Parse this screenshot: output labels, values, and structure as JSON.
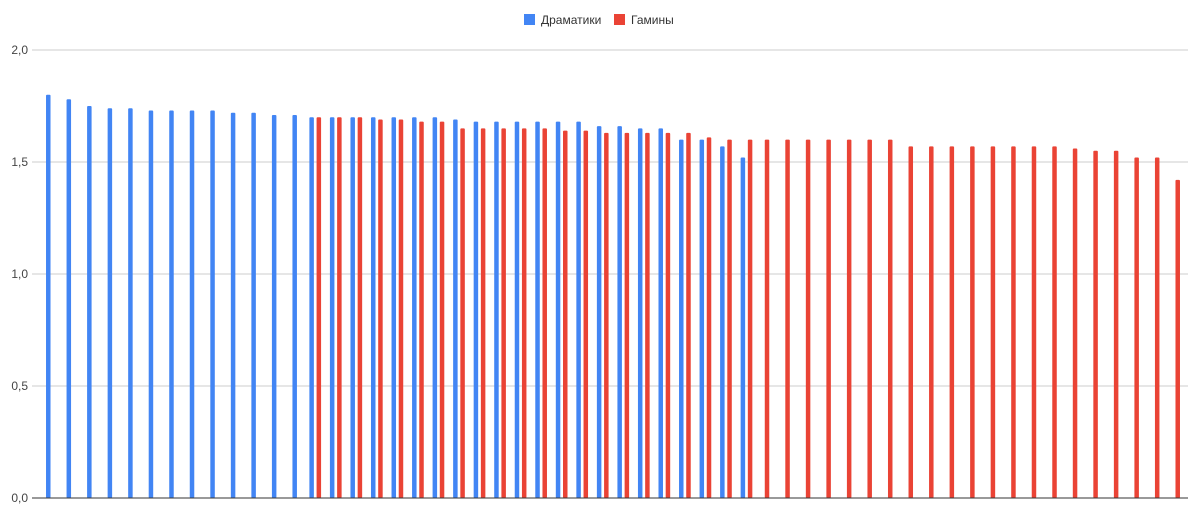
{
  "chart_data": {
    "type": "bar",
    "ylim": [
      0,
      2
    ],
    "y_ticks": [
      "0,0",
      "0,5",
      "1,0",
      "1,5",
      "2,0"
    ],
    "y_tick_values": [
      0,
      0.5,
      1.0,
      1.5,
      2.0
    ],
    "grid": true,
    "legend_position": "top-center",
    "categories": [
      "",
      "",
      "",
      "",
      "",
      "",
      "",
      "",
      "",
      "",
      "",
      "",
      "",
      "",
      "",
      "",
      "",
      "",
      "",
      "",
      "",
      "",
      "",
      "",
      "",
      "",
      "",
      "",
      "",
      "",
      "",
      "",
      "",
      "",
      "",
      "",
      "",
      "",
      "",
      "",
      "",
      "",
      "",
      "",
      "",
      "",
      "",
      "",
      "",
      "",
      "",
      "",
      "",
      "",
      "",
      ""
    ],
    "series": [
      {
        "name": "Драматики",
        "color": "#4285f4",
        "values": [
          1.8,
          1.78,
          1.75,
          1.74,
          1.74,
          1.73,
          1.73,
          1.73,
          1.73,
          1.72,
          1.72,
          1.71,
          1.71,
          1.7,
          1.7,
          1.7,
          1.7,
          1.7,
          1.7,
          1.7,
          1.69,
          1.68,
          1.68,
          1.68,
          1.68,
          1.68,
          1.68,
          1.66,
          1.66,
          1.65,
          1.65,
          1.6,
          1.6,
          1.57,
          1.52,
          null,
          null,
          null,
          null,
          null,
          null,
          null,
          null,
          null,
          null,
          null,
          null,
          null,
          null,
          null,
          null,
          null,
          null,
          null,
          null,
          null
        ]
      },
      {
        "name": "Гамины",
        "color": "#ea4335",
        "values": [
          null,
          null,
          null,
          null,
          null,
          null,
          null,
          null,
          null,
          null,
          null,
          null,
          null,
          1.7,
          1.7,
          1.7,
          1.69,
          1.69,
          1.68,
          1.68,
          1.65,
          1.65,
          1.65,
          1.65,
          1.65,
          1.64,
          1.64,
          1.63,
          1.63,
          1.63,
          1.63,
          1.63,
          1.61,
          1.6,
          1.6,
          1.6,
          1.6,
          1.6,
          1.6,
          1.6,
          1.6,
          1.6,
          1.57,
          1.57,
          1.57,
          1.57,
          1.57,
          1.57,
          1.57,
          1.57,
          1.56,
          1.55,
          1.55,
          1.52,
          1.52,
          1.42
        ]
      }
    ]
  }
}
